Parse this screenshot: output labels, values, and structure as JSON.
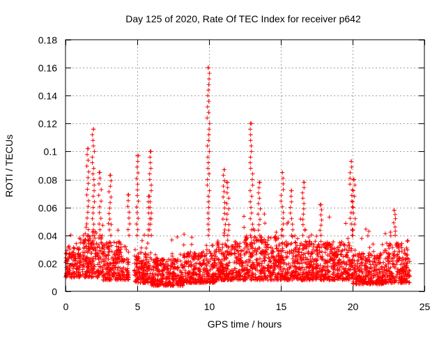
{
  "chart_data": {
    "type": "scatter",
    "title": "Day 125 of 2020, Rate Of TEC Index for receiver p642",
    "xlabel": "GPS time / hours",
    "ylabel": "ROTI / TECUs",
    "xlim": [
      0,
      25
    ],
    "ylim": [
      0,
      0.18
    ],
    "xticks": [
      0,
      5,
      10,
      15,
      20,
      25
    ],
    "xtick_labels": [
      "0",
      "5",
      "10",
      "15",
      "20",
      "25"
    ],
    "yticks": [
      0,
      0.02,
      0.04,
      0.06,
      0.08,
      0.1,
      0.12,
      0.14,
      0.16,
      0.18
    ],
    "ytick_labels": [
      "0",
      "0.02",
      "0.04",
      "0.06",
      "0.08",
      "0.1",
      "0.12",
      "0.14",
      "0.16",
      "0.18"
    ],
    "grid": true,
    "marker": "+",
    "color": "#ff0000",
    "data_coverage_hours": [
      0,
      24
    ],
    "bands": [
      {
        "x": [
          0.0,
          1.0
        ],
        "lo": 0.01,
        "hi": 0.04
      },
      {
        "x": [
          1.0,
          2.6
        ],
        "lo": 0.01,
        "hi": 0.05
      },
      {
        "x": [
          2.6,
          4.4
        ],
        "lo": 0.008,
        "hi": 0.045
      },
      {
        "x": [
          4.8,
          6.0
        ],
        "lo": 0.006,
        "hi": 0.035
      },
      {
        "x": [
          6.0,
          8.2
        ],
        "lo": 0.004,
        "hi": 0.03
      },
      {
        "x": [
          8.2,
          10.5
        ],
        "lo": 0.006,
        "hi": 0.035
      },
      {
        "x": [
          10.5,
          12.5
        ],
        "lo": 0.008,
        "hi": 0.045
      },
      {
        "x": [
          12.5,
          15.0
        ],
        "lo": 0.008,
        "hi": 0.05
      },
      {
        "x": [
          15.0,
          17.5
        ],
        "lo": 0.008,
        "hi": 0.045
      },
      {
        "x": [
          17.5,
          20.0
        ],
        "lo": 0.008,
        "hi": 0.045
      },
      {
        "x": [
          20.0,
          22.2
        ],
        "lo": 0.005,
        "hi": 0.035
      },
      {
        "x": [
          22.2,
          24.0
        ],
        "lo": 0.006,
        "hi": 0.045
      }
    ],
    "spikes": [
      {
        "x": 1.55,
        "y": 0.102
      },
      {
        "x": 1.95,
        "y": 0.116
      },
      {
        "x": 2.4,
        "y": 0.085
      },
      {
        "x": 3.1,
        "y": 0.083
      },
      {
        "x": 4.4,
        "y": 0.069
      },
      {
        "x": 5.0,
        "y": 0.097
      },
      {
        "x": 5.9,
        "y": 0.1
      },
      {
        "x": 5.8,
        "y": 0.068
      },
      {
        "x": 9.95,
        "y": 0.16
      },
      {
        "x": 11.05,
        "y": 0.087
      },
      {
        "x": 11.3,
        "y": 0.078
      },
      {
        "x": 12.95,
        "y": 0.12
      },
      {
        "x": 13.5,
        "y": 0.078
      },
      {
        "x": 15.1,
        "y": 0.085
      },
      {
        "x": 15.75,
        "y": 0.072
      },
      {
        "x": 16.6,
        "y": 0.078
      },
      {
        "x": 17.8,
        "y": 0.062
      },
      {
        "x": 19.9,
        "y": 0.093
      },
      {
        "x": 20.1,
        "y": 0.08
      },
      {
        "x": 22.9,
        "y": 0.058
      }
    ]
  }
}
